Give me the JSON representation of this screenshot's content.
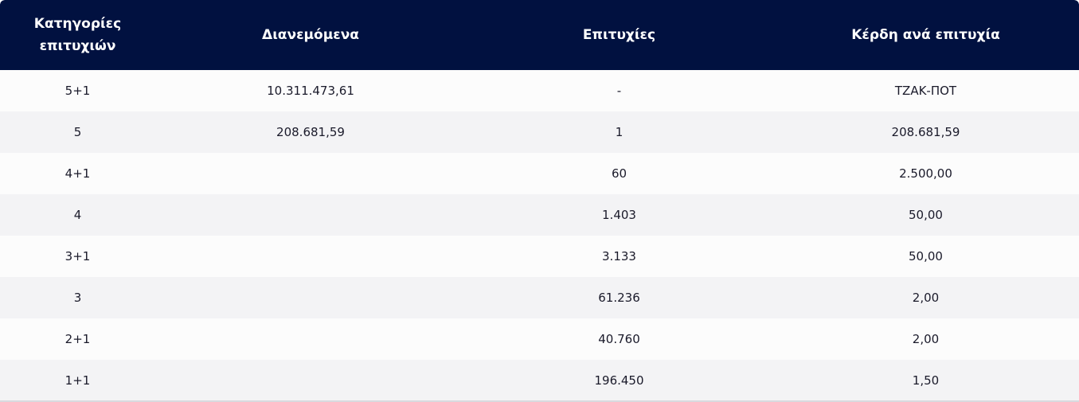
{
  "table": {
    "headers": [
      "Κατηγορίες επιτυχιών",
      "Διανεμόμενα",
      "Επιτυχίες",
      "Κέρδη ανά επιτυχία"
    ],
    "rows": [
      [
        "5+1",
        "10.311.473,61",
        "-",
        "ΤΖΑΚ-ΠΟΤ"
      ],
      [
        "5",
        "208.681,59",
        "1",
        "208.681,59"
      ],
      [
        "4+1",
        "",
        "60",
        "2.500,00"
      ],
      [
        "4",
        "",
        "1.403",
        "50,00"
      ],
      [
        "3+1",
        "",
        "3.133",
        "50,00"
      ],
      [
        "3",
        "",
        "61.236",
        "2,00"
      ],
      [
        "2+1",
        "",
        "40.760",
        "2,00"
      ],
      [
        "1+1",
        "",
        "196.450",
        "1,50"
      ]
    ]
  },
  "colors": {
    "header_bg": "#011140",
    "header_text": "#ffffff",
    "row_odd": "#fcfcfc",
    "row_even": "#f3f3f5",
    "cell_text": "#1a1a2a"
  }
}
